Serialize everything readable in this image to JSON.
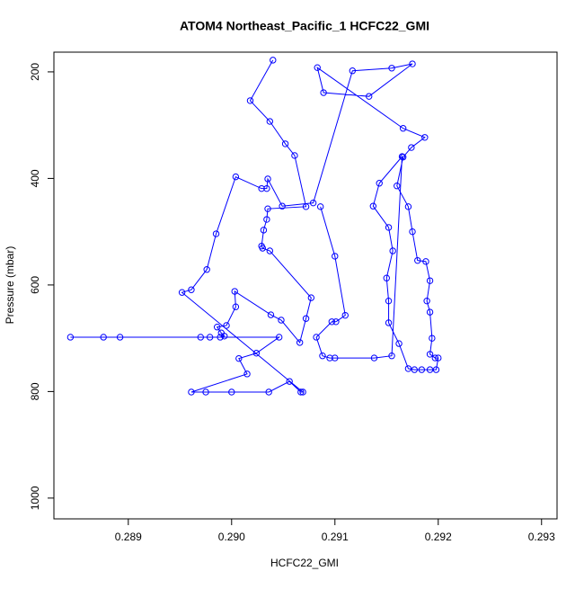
{
  "chart_data": {
    "type": "line",
    "title": "ATOM4 Northeast_Pacific_1 HCFC22_GMI",
    "x_label": "HCFC22_GMI",
    "y_label": "Pressure (mbar)",
    "xlim": [
      0.28828,
      0.29315
    ],
    "ylim": [
      1039,
      163
    ],
    "xticks": [
      0.289,
      {
        "value": 0.29,
        "label": "0.290"
      },
      0.291,
      0.292,
      0.293
    ],
    "yticks": [
      200,
      400,
      600,
      800,
      1000
    ],
    "grid": false,
    "series": [
      {
        "color": "#0000ff",
        "x": [
          0.2904,
          0.29018,
          0.29037,
          0.29052,
          0.29061,
          0.29072,
          0.29035,
          0.29034,
          0.29031,
          0.29029,
          0.2903,
          0.29037,
          0.29077,
          0.29072,
          0.29066,
          0.29048,
          0.29038,
          0.29003,
          0.29004,
          0.28995,
          0.28986,
          0.2899,
          0.28993,
          0.28989,
          0.28979,
          0.2897,
          0.28892,
          0.28876,
          0.28844,
          0.29046,
          0.29024,
          0.29007,
          0.29015,
          0.28961,
          0.28975,
          0.29,
          0.29036,
          0.29056,
          0.29067,
          0.29069,
          0.28952,
          0.28961,
          0.28976,
          0.28985,
          0.29004,
          0.29029,
          0.29034,
          0.29035,
          0.29049,
          0.29079,
          0.29117,
          0.29155,
          0.29175,
          0.29133,
          0.29089,
          0.29083,
          0.29166,
          0.29187,
          0.29174,
          0.29166,
          0.2916,
          0.29171,
          0.29175,
          0.2918,
          0.29188,
          0.29192,
          0.29189,
          0.29192,
          0.29194,
          0.29192,
          0.29197,
          0.292,
          0.29198,
          0.29192,
          0.29184,
          0.29177,
          0.29171,
          0.29162,
          0.29152,
          0.29152,
          0.2915,
          0.29156,
          0.29152,
          0.29137,
          0.29143,
          0.29165,
          0.29155,
          0.29138,
          0.291,
          0.29095,
          0.29088,
          0.29082,
          0.29097,
          0.29101,
          0.2911,
          0.291,
          0.29086
        ],
        "values": [
          178,
          254,
          293,
          335,
          357,
          453,
          457,
          477,
          497,
          527,
          531,
          536,
          624,
          663,
          708,
          666,
          656,
          612,
          641,
          676,
          679,
          690,
          696,
          698,
          698,
          698,
          698,
          698,
          698,
          698,
          728,
          738,
          767,
          801,
          801,
          801,
          801,
          781,
          801,
          801,
          614,
          609,
          571,
          504,
          397,
          419,
          419,
          401,
          452,
          446,
          198,
          193,
          185,
          246,
          239,
          192,
          306,
          323,
          342,
          360,
          414,
          453,
          500,
          554,
          556,
          592,
          630,
          651,
          700,
          730,
          737,
          737,
          759,
          759,
          759,
          759,
          757,
          710,
          671,
          630,
          587,
          536,
          492,
          452,
          409,
          359,
          733,
          737,
          737,
          737,
          733,
          698,
          669,
          669,
          657,
          546,
          453
        ]
      }
    ]
  }
}
